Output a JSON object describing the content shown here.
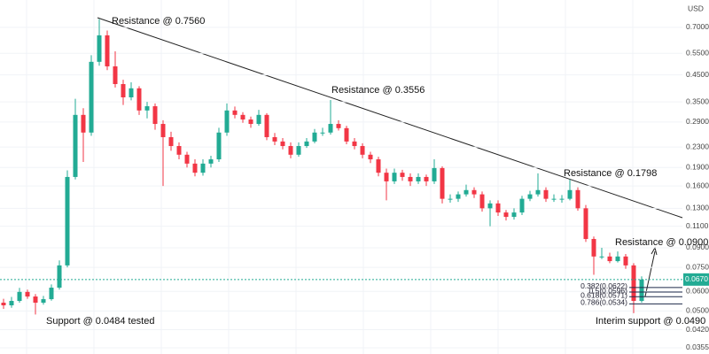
{
  "chart_data": {
    "type": "candlestick",
    "y_label": "USD",
    "yscale": "log",
    "grid": true,
    "ylim": [
      0.0335,
      0.903
    ],
    "yticks": [
      {
        "value": 0.7,
        "label": "0.7000"
      },
      {
        "value": 0.55,
        "label": "0.5500"
      },
      {
        "value": 0.45,
        "label": "0.4500"
      },
      {
        "value": 0.35,
        "label": "0.3500"
      },
      {
        "value": 0.29,
        "label": "0.2900"
      },
      {
        "value": 0.23,
        "label": "0.2300"
      },
      {
        "value": 0.19,
        "label": "0.1900"
      },
      {
        "value": 0.16,
        "label": "0.1600"
      },
      {
        "value": 0.13,
        "label": "0.1300"
      },
      {
        "value": 0.11,
        "label": "0.1100"
      },
      {
        "value": 0.09,
        "label": "0.0900"
      },
      {
        "value": 0.075,
        "label": "0.0750"
      },
      {
        "value": 0.06,
        "label": "0.0600"
      },
      {
        "value": 0.05,
        "label": "0.0500"
      },
      {
        "value": 0.042,
        "label": "0.0420"
      },
      0.0355
    ],
    "up_color": "#22ab94",
    "down_color": "#f23645",
    "series": [
      {
        "open": [
          0.054,
          0.0527,
          0.0549,
          0.0597,
          0.0572,
          0.054,
          0.0558,
          0.0621,
          0.0764,
          0.174,
          0.31,
          0.263,
          0.508,
          0.65,
          0.487,
          0.413,
          0.365,
          0.397,
          0.323,
          0.336,
          0.285,
          0.252,
          0.232,
          0.214,
          0.197,
          0.181,
          0.197,
          0.205,
          0.263,
          0.323,
          0.31,
          0.297,
          0.285,
          0.31,
          0.252,
          0.242,
          0.232,
          0.214,
          0.232,
          0.242,
          0.263,
          0.263,
          0.285,
          0.274,
          0.242,
          0.232,
          0.214,
          0.205,
          0.181,
          0.167,
          0.181,
          0.174,
          0.167,
          0.174,
          0.167,
          0.189,
          0.142,
          0.142,
          0.148,
          0.154,
          0.148,
          0.13,
          0.136,
          0.125,
          0.12,
          0.125,
          0.142,
          0.148,
          0.154,
          0.142,
          0.142,
          0.142,
          0.154,
          0.13,
          0.0977,
          0.083,
          0.083,
          0.0795,
          0.083,
          0.0764,
          0.0549
        ],
        "high": [
          0.056,
          0.057,
          0.062,
          0.061,
          0.0585,
          0.0575,
          0.064,
          0.08,
          0.185,
          0.36,
          0.33,
          0.54,
          0.756,
          0.68,
          0.56,
          0.43,
          0.42,
          0.405,
          0.35,
          0.345,
          0.295,
          0.265,
          0.24,
          0.22,
          0.205,
          0.205,
          0.212,
          0.275,
          0.345,
          0.335,
          0.318,
          0.305,
          0.325,
          0.315,
          0.262,
          0.25,
          0.24,
          0.24,
          0.25,
          0.272,
          0.275,
          0.356,
          0.295,
          0.28,
          0.25,
          0.238,
          0.22,
          0.21,
          0.188,
          0.188,
          0.186,
          0.18,
          0.18,
          0.178,
          0.205,
          0.192,
          0.148,
          0.152,
          0.162,
          0.158,
          0.152,
          0.14,
          0.14,
          0.128,
          0.13,
          0.146,
          0.153,
          0.18,
          0.158,
          0.148,
          0.147,
          0.17,
          0.158,
          0.134,
          0.1,
          0.09,
          0.086,
          0.087,
          0.085,
          0.078,
          0.069
        ],
        "low": [
          0.051,
          0.0515,
          0.054,
          0.056,
          0.0484,
          0.053,
          0.055,
          0.061,
          0.075,
          0.17,
          0.2,
          0.255,
          0.49,
          0.47,
          0.4,
          0.34,
          0.355,
          0.31,
          0.3,
          0.27,
          0.16,
          0.222,
          0.205,
          0.19,
          0.175,
          0.176,
          0.19,
          0.2,
          0.255,
          0.3,
          0.288,
          0.275,
          0.28,
          0.245,
          0.234,
          0.225,
          0.207,
          0.21,
          0.228,
          0.238,
          0.255,
          0.258,
          0.268,
          0.236,
          0.225,
          0.207,
          0.198,
          0.175,
          0.14,
          0.163,
          0.168,
          0.16,
          0.163,
          0.16,
          0.163,
          0.136,
          0.137,
          0.138,
          0.145,
          0.143,
          0.126,
          0.11,
          0.121,
          0.116,
          0.117,
          0.122,
          0.139,
          0.145,
          0.138,
          0.138,
          0.137,
          0.14,
          0.127,
          0.095,
          0.07,
          0.081,
          0.078,
          0.0785,
          0.074,
          0.049,
          0.054
        ],
        "close": [
          0.0527,
          0.0549,
          0.0597,
          0.0572,
          0.054,
          0.0558,
          0.0621,
          0.0764,
          0.174,
          0.31,
          0.263,
          0.508,
          0.65,
          0.487,
          0.413,
          0.365,
          0.397,
          0.323,
          0.336,
          0.285,
          0.252,
          0.232,
          0.214,
          0.197,
          0.181,
          0.197,
          0.205,
          0.263,
          0.323,
          0.31,
          0.297,
          0.285,
          0.31,
          0.252,
          0.242,
          0.232,
          0.214,
          0.232,
          0.242,
          0.263,
          0.263,
          0.285,
          0.274,
          0.242,
          0.232,
          0.214,
          0.205,
          0.181,
          0.167,
          0.181,
          0.174,
          0.167,
          0.174,
          0.167,
          0.189,
          0.142,
          0.142,
          0.148,
          0.154,
          0.148,
          0.13,
          0.136,
          0.125,
          0.12,
          0.125,
          0.142,
          0.148,
          0.154,
          0.142,
          0.142,
          0.142,
          0.154,
          0.13,
          0.0977,
          0.083,
          0.083,
          0.0795,
          0.083,
          0.0764,
          0.0549,
          0.067
        ]
      }
    ],
    "current_price": {
      "value": 0.067,
      "label": "0.0670"
    },
    "fibonacci": [
      {
        "label": "0.382(0.0622)",
        "value": 0.0622
      },
      {
        "label": "0.5(0.0596)",
        "value": 0.0596
      },
      {
        "label": "0.618(0.0571)",
        "value": 0.0571
      },
      {
        "label": "0.786(0.0534)",
        "value": 0.0534
      }
    ],
    "annotations": [
      "Resistance @ 0.7560",
      "Resistance @ 0.3556",
      "Resistance @ 0.1798",
      "Resistance @ 0.0900",
      "Support @ 0.0484 tested",
      "Interim support @ 0.0490"
    ]
  }
}
